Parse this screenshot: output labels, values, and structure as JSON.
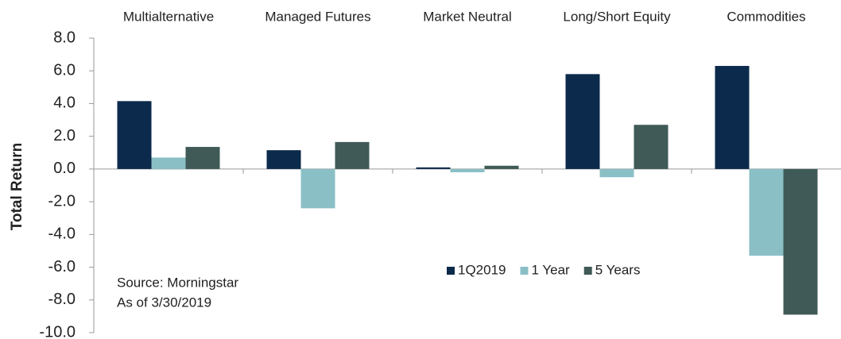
{
  "chart_data": {
    "type": "bar",
    "categories": [
      "Multialternative",
      "Managed Futures",
      "Market Neutral",
      "Long/Short Equity",
      "Commodities"
    ],
    "series": [
      {
        "name": "1Q2019",
        "color": "#0c2a4b",
        "values": [
          4.15,
          1.15,
          0.1,
          5.8,
          6.3
        ]
      },
      {
        "name": "1 Year",
        "color": "#8bbfc6",
        "values": [
          0.7,
          -2.4,
          -0.2,
          -0.5,
          -5.3
        ]
      },
      {
        "name": "5 Years",
        "color": "#3f5a57",
        "values": [
          1.35,
          1.65,
          0.2,
          2.7,
          -8.9
        ]
      }
    ],
    "ylabel": "Total Return",
    "ylim": [
      -10,
      8
    ],
    "yticks": [
      {
        "value": -10,
        "label": "-10.0"
      },
      {
        "value": -8,
        "label": "-8.0"
      },
      {
        "value": -6,
        "label": "-6.0"
      },
      {
        "value": -4,
        "label": "-4.0"
      },
      {
        "value": -2,
        "label": "-2.0"
      },
      {
        "value": 0,
        "label": "0.0"
      },
      {
        "value": 2,
        "label": "2.0"
      },
      {
        "value": 4,
        "label": "4.0"
      },
      {
        "value": 6,
        "label": "6.0"
      },
      {
        "value": 8,
        "label": "8.0"
      }
    ],
    "annotations": [
      "Source:  Morningstar",
      "As of  3/30/2019"
    ],
    "legend": "lower-center"
  }
}
